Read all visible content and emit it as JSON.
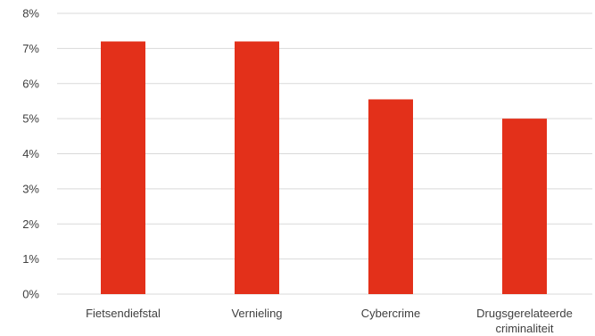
{
  "chart_data": {
    "type": "bar",
    "categories": [
      [
        "Fietsendiefstal"
      ],
      [
        "Vernieling"
      ],
      [
        "Cybercrime"
      ],
      [
        "Drugsgerelateerde",
        "criminaliteit"
      ]
    ],
    "values": [
      7.2,
      7.2,
      5.55,
      5.0
    ],
    "title": "",
    "xlabel": "",
    "ylabel": "",
    "ylim": [
      0,
      8
    ],
    "yticks": [
      "0%",
      "1%",
      "2%",
      "3%",
      "4%",
      "5%",
      "6%",
      "7%",
      "8%"
    ],
    "grid": true,
    "legend": "none",
    "bar_color": "#e3301a"
  }
}
